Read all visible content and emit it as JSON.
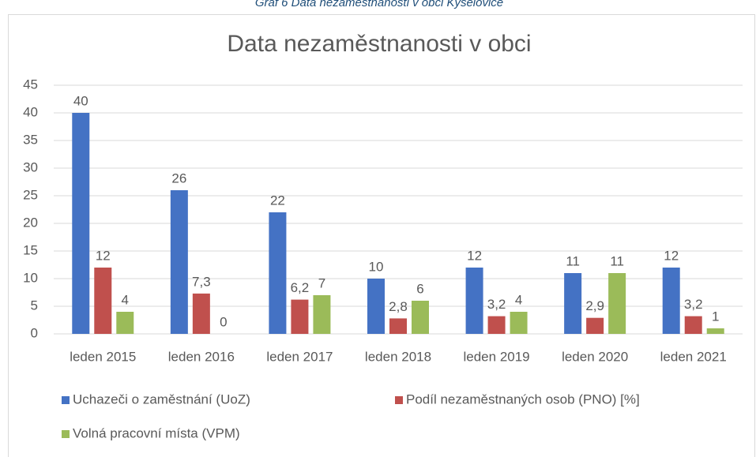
{
  "caption": "Graf 6 Data nezaměstnanosti v obci Kyselovice",
  "chart_data": {
    "type": "bar",
    "title": "Data nezaměstnanosti v obci",
    "categories": [
      "leden 2015",
      "leden 2016",
      "leden 2017",
      "leden 2018",
      "leden 2019",
      "leden 2020",
      "leden 2021"
    ],
    "series": [
      {
        "name": "Uchazeči o zaměstnání (UoZ)",
        "color": "#4472c4",
        "values": [
          40,
          26,
          22,
          10,
          12,
          11,
          12
        ]
      },
      {
        "name": "Podíl nezaměstnaných osob (PNO) [%]",
        "color": "#c0504d",
        "values": [
          12,
          7.3,
          6.2,
          2.8,
          3.2,
          2.9,
          3.2
        ],
        "value_labels": [
          "12",
          "7,3",
          "6,2",
          "2,8",
          "3,2",
          "2,9",
          "3,2"
        ]
      },
      {
        "name": "Volná pracovní místa (VPM)",
        "color": "#9bbb59",
        "values": [
          4,
          0,
          7,
          6,
          4,
          11,
          1
        ]
      }
    ],
    "ylim": [
      0,
      45
    ],
    "yticks": [
      0,
      5,
      10,
      15,
      20,
      25,
      30,
      35,
      40,
      45
    ],
    "grid": true,
    "legend": "bottom"
  }
}
